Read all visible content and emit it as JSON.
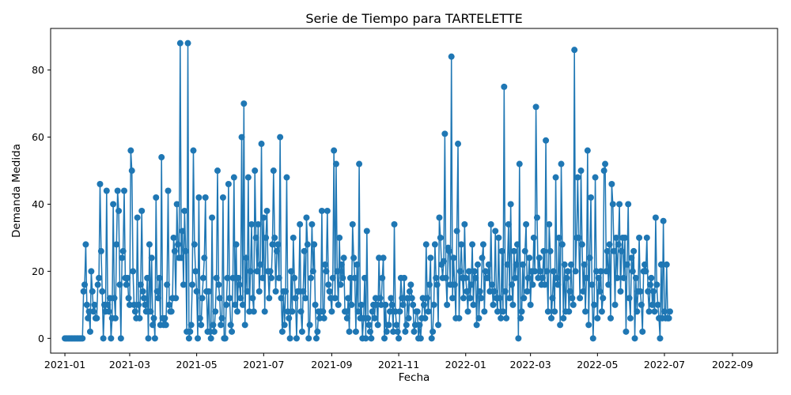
{
  "chart_data": {
    "type": "line",
    "title": "Serie de Tiempo para TARTELETTE",
    "xlabel": "Fecha",
    "ylabel": "Demanda Medida",
    "xlim": [
      "2020-12-19",
      "2022-10-12"
    ],
    "ylim": [
      -4.4,
      92.4
    ],
    "grid": false,
    "marker": "circle",
    "color": "#1f77b4",
    "x_ticks": [
      {
        "date": "2021-01-01",
        "label": "2021-01"
      },
      {
        "date": "2021-03-01",
        "label": "2021-03"
      },
      {
        "date": "2021-05-01",
        "label": "2021-05"
      },
      {
        "date": "2021-07-01",
        "label": "2021-07"
      },
      {
        "date": "2021-09-01",
        "label": "2021-09"
      },
      {
        "date": "2021-11-01",
        "label": "2021-11"
      },
      {
        "date": "2022-01-01",
        "label": "2022-01"
      },
      {
        "date": "2022-03-01",
        "label": "2022-03"
      },
      {
        "date": "2022-05-01",
        "label": "2022-05"
      },
      {
        "date": "2022-07-01",
        "label": "2022-07"
      },
      {
        "date": "2022-09-01",
        "label": "2022-09"
      }
    ],
    "y_ticks": [
      0,
      20,
      40,
      60,
      80
    ],
    "series": [
      {
        "start_date": "2021-01-01",
        "values": [
          0,
          0,
          0,
          0,
          0,
          0,
          0,
          0,
          0,
          0,
          0,
          0,
          0,
          0,
          0,
          0,
          0,
          14,
          16,
          28,
          10,
          6,
          8,
          2,
          20,
          14,
          8,
          10,
          6,
          6,
          16,
          18,
          46,
          26,
          14,
          0,
          10,
          8,
          44,
          10,
          8,
          12,
          0,
          6,
          40,
          12,
          6,
          28,
          44,
          38,
          16,
          0,
          24,
          26,
          44,
          18,
          16,
          18,
          12,
          10,
          56,
          50,
          20,
          10,
          8,
          6,
          36,
          10,
          6,
          16,
          38,
          14,
          12,
          10,
          8,
          18,
          0,
          28,
          8,
          24,
          4,
          6,
          0,
          42,
          14,
          12,
          18,
          4,
          54,
          6,
          4,
          6,
          4,
          16,
          44,
          10,
          8,
          8,
          12,
          30,
          26,
          12,
          40,
          28,
          24,
          88,
          24,
          32,
          16,
          38,
          26,
          2,
          88,
          0,
          2,
          4,
          16,
          56,
          28,
          20,
          14,
          0,
          42,
          6,
          4,
          12,
          18,
          24,
          42,
          14,
          2,
          14,
          2,
          0,
          36,
          4,
          2,
          8,
          18,
          50,
          16,
          12,
          4,
          6,
          42,
          0,
          0,
          10,
          18,
          46,
          12,
          4,
          2,
          18,
          48,
          10,
          28,
          8,
          18,
          16,
          12,
          60,
          10,
          70,
          4,
          24,
          14,
          48,
          8,
          20,
          34,
          12,
          8,
          50,
          30,
          20,
          34,
          14,
          22,
          58,
          18,
          36,
          8,
          30,
          38,
          20,
          12,
          20,
          18,
          28,
          50,
          30,
          14,
          26,
          28,
          18,
          60,
          12,
          2,
          14,
          4,
          14,
          48,
          8,
          6,
          0,
          20,
          8,
          30,
          18,
          12,
          0,
          14,
          14,
          34,
          8,
          2,
          14,
          26,
          12,
          36,
          28,
          0,
          4,
          18,
          34,
          20,
          28,
          10,
          0,
          2,
          8,
          6,
          8,
          38,
          8,
          6,
          22,
          20,
          38,
          16,
          14,
          12,
          8,
          18,
          56,
          12,
          52,
          20,
          10,
          30,
          16,
          22,
          18,
          24,
          8,
          8,
          6,
          12,
          2,
          18,
          10,
          34,
          24,
          18,
          2,
          22,
          8,
          52,
          6,
          10,
          0,
          6,
          18,
          0,
          32,
          6,
          4,
          2,
          0,
          8,
          10,
          6,
          12,
          10,
          4,
          24,
          12,
          10,
          18,
          24,
          0,
          10,
          2,
          4,
          4,
          8,
          12,
          10,
          2,
          34,
          8,
          4,
          2,
          0,
          8,
          18,
          12,
          10,
          18,
          2,
          4,
          12,
          6,
          14,
          16,
          12,
          10,
          2,
          4,
          8,
          8,
          0,
          4,
          0,
          6,
          12,
          10,
          6,
          28,
          12,
          8,
          16,
          24,
          0,
          2,
          10,
          28,
          18,
          16,
          4,
          36,
          30,
          22,
          18,
          23,
          61,
          18,
          10,
          27,
          26,
          16,
          84,
          12,
          24,
          16,
          6,
          32,
          58,
          6,
          20,
          28,
          18,
          12,
          34,
          18,
          14,
          8,
          20,
          12,
          16,
          28,
          10,
          20,
          18,
          4,
          22,
          6,
          14,
          12,
          24,
          28,
          8,
          20,
          18,
          18,
          22,
          14,
          34,
          16,
          10,
          14,
          32,
          12,
          8,
          30,
          12,
          6,
          26,
          8,
          75,
          14,
          6,
          22,
          34,
          12,
          40,
          16,
          10,
          26,
          18,
          22,
          28,
          0,
          52,
          6,
          8,
          22,
          12,
          26,
          34,
          14,
          18,
          24,
          10,
          20,
          16,
          30,
          20,
          69,
          36,
          18,
          24,
          20,
          16,
          18,
          26,
          16,
          59,
          20,
          8,
          34,
          26,
          6,
          12,
          20,
          8,
          48,
          18,
          16,
          30,
          4,
          52,
          28,
          6,
          22,
          8,
          18,
          20,
          8,
          14,
          22,
          12,
          10,
          86,
          20,
          30,
          48,
          30,
          12,
          50,
          28,
          14,
          22,
          8,
          18,
          56,
          4,
          24,
          42,
          16,
          0,
          10,
          48,
          20,
          6,
          18,
          14,
          20,
          8,
          12,
          50,
          52,
          20,
          26,
          16,
          28,
          6,
          46,
          40,
          26,
          10,
          30,
          18,
          28,
          40,
          14,
          26,
          30,
          18,
          30,
          2,
          22,
          40,
          12,
          6,
          24,
          20,
          26,
          0,
          18,
          8,
          14,
          30,
          14,
          10,
          2,
          20,
          22,
          20,
          30,
          14,
          8,
          16,
          18,
          10,
          14,
          8,
          36,
          16,
          10,
          6,
          0,
          22,
          6,
          35,
          8,
          6,
          22,
          6,
          6,
          8
        ]
      }
    ]
  }
}
